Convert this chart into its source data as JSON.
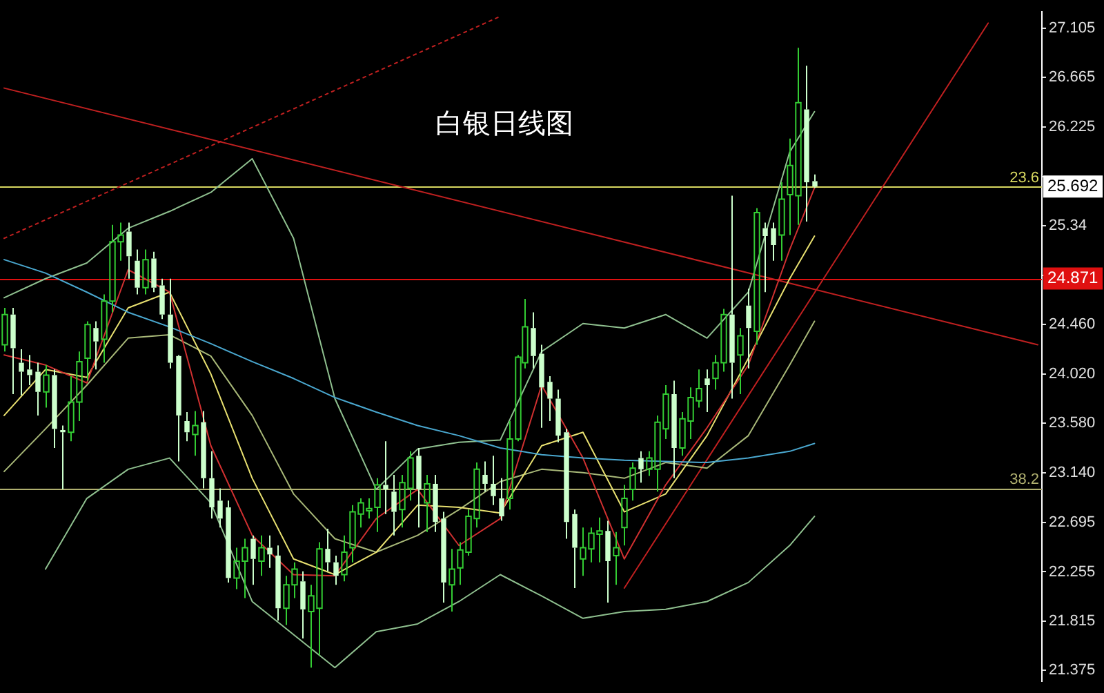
{
  "chart_data": {
    "type": "candlestick",
    "title": "白银日线图",
    "categories": [
      null,
      null,
      null,
      null,
      null,
      null,
      null,
      null,
      null,
      null,
      null,
      null,
      null,
      null,
      null,
      null,
      null,
      null,
      null,
      null,
      null,
      null,
      null,
      null,
      null,
      null,
      null,
      null,
      null,
      null,
      null,
      null,
      null,
      null,
      null,
      null,
      null,
      null,
      null,
      null,
      null,
      null,
      null,
      null,
      null,
      null,
      null,
      null,
      null,
      null,
      null,
      null,
      null,
      null,
      null,
      null,
      null,
      null,
      null,
      null,
      null,
      null,
      null,
      null,
      null,
      null,
      null,
      null,
      null,
      null,
      null,
      null,
      null,
      null,
      null,
      null,
      null,
      null,
      null,
      null,
      null,
      null,
      null,
      null,
      null,
      null,
      null,
      null,
      null,
      null,
      null,
      null,
      null,
      null,
      null,
      null,
      null,
      null,
      null,
      null,
      null,
      null,
      null,
      null,
      null,
      null,
      null,
      null,
      null,
      null,
      null,
      null,
      null,
      null,
      null,
      null,
      null,
      null,
      null,
      null,
      null,
      null,
      null,
      null,
      null,
      null
    ],
    "ohlc": [
      [
        24.28,
        24.61,
        24.22,
        24.55
      ],
      [
        24.55,
        24.61,
        23.84,
        24.25
      ],
      [
        24.12,
        24.24,
        23.83,
        24.04
      ],
      [
        24.06,
        24.19,
        23.92,
        24.01
      ],
      [
        24.04,
        24.12,
        23.65,
        23.86
      ],
      [
        23.86,
        24.1,
        23.72,
        24.01
      ],
      [
        24.01,
        24.06,
        23.36,
        23.53
      ],
      [
        23.52,
        23.56,
        22.99,
        23.5
      ],
      [
        23.5,
        24.0,
        23.42,
        23.77
      ],
      [
        23.77,
        24.22,
        23.6,
        24.13
      ],
      [
        24.16,
        24.49,
        23.96,
        24.46
      ],
      [
        24.43,
        24.49,
        24.06,
        24.31
      ],
      [
        24.33,
        24.73,
        24.12,
        24.67
      ],
      [
        24.67,
        25.35,
        24.57,
        25.2
      ],
      [
        25.2,
        25.37,
        25.03,
        25.26
      ],
      [
        25.29,
        25.37,
        24.87,
        25.07
      ],
      [
        25.03,
        25.13,
        24.73,
        24.79
      ],
      [
        24.79,
        25.13,
        24.73,
        25.04
      ],
      [
        25.05,
        25.11,
        24.75,
        24.79
      ],
      [
        24.81,
        24.87,
        24.51,
        24.55
      ],
      [
        24.55,
        24.87,
        24.07,
        24.12
      ],
      [
        24.18,
        24.19,
        23.24,
        23.65
      ],
      [
        23.6,
        23.68,
        23.42,
        23.5
      ],
      [
        23.48,
        23.69,
        23.29,
        23.56
      ],
      [
        23.59,
        23.69,
        23.0,
        23.09
      ],
      [
        23.09,
        23.33,
        22.73,
        22.83
      ],
      [
        22.89,
        23.0,
        22.65,
        22.73
      ],
      [
        22.83,
        22.89,
        22.16,
        22.2
      ],
      [
        22.2,
        22.47,
        22.1,
        22.35
      ],
      [
        22.35,
        22.55,
        22.02,
        22.47
      ],
      [
        22.55,
        22.58,
        22.14,
        22.37
      ],
      [
        22.35,
        22.58,
        22.22,
        22.47
      ],
      [
        22.47,
        22.58,
        22.29,
        22.41
      ],
      [
        22.4,
        22.49,
        21.82,
        21.93
      ],
      [
        21.93,
        22.22,
        21.78,
        22.14
      ],
      [
        22.14,
        22.34,
        22.02,
        22.28
      ],
      [
        22.17,
        22.26,
        21.66,
        21.92
      ],
      [
        21.9,
        22.14,
        21.4,
        22.04
      ],
      [
        21.93,
        22.52,
        21.51,
        22.46
      ],
      [
        22.46,
        22.64,
        22.26,
        22.34
      ],
      [
        22.34,
        22.4,
        22.14,
        22.22
      ],
      [
        22.23,
        22.58,
        22.17,
        22.43
      ],
      [
        22.47,
        22.85,
        22.34,
        22.79
      ],
      [
        22.77,
        22.91,
        22.65,
        22.87
      ],
      [
        22.8,
        22.91,
        22.73,
        22.82
      ],
      [
        22.83,
        23.09,
        22.61,
        23.03
      ],
      [
        23.03,
        23.42,
        22.77,
        22.99
      ],
      [
        22.97,
        23.12,
        22.58,
        22.79
      ],
      [
        22.81,
        23.12,
        22.65,
        23.05
      ],
      [
        23.0,
        23.33,
        22.89,
        23.27
      ],
      [
        23.29,
        23.36,
        22.65,
        22.99
      ],
      [
        22.87,
        23.12,
        22.61,
        23.04
      ],
      [
        23.04,
        23.12,
        22.61,
        22.7
      ],
      [
        22.73,
        22.79,
        21.98,
        22.16
      ],
      [
        22.14,
        22.46,
        21.9,
        22.28
      ],
      [
        22.29,
        22.52,
        22.14,
        22.45
      ],
      [
        22.43,
        22.81,
        22.4,
        22.75
      ],
      [
        22.73,
        23.23,
        22.65,
        23.17
      ],
      [
        23.12,
        23.24,
        22.97,
        23.04
      ],
      [
        23.04,
        23.29,
        22.85,
        22.93
      ],
      [
        22.91,
        23.09,
        22.71,
        22.75
      ],
      [
        22.91,
        23.6,
        22.81,
        23.44
      ],
      [
        23.44,
        24.19,
        23.42,
        24.17
      ],
      [
        24.12,
        24.69,
        24.07,
        24.44
      ],
      [
        24.43,
        24.57,
        24.07,
        24.18
      ],
      [
        24.2,
        24.28,
        23.54,
        23.9
      ],
      [
        23.95,
        24.0,
        23.6,
        23.8
      ],
      [
        23.8,
        23.88,
        23.41,
        23.47
      ],
      [
        23.5,
        23.53,
        22.55,
        22.7
      ],
      [
        22.77,
        22.81,
        22.11,
        22.47
      ],
      [
        22.37,
        22.65,
        22.22,
        22.47
      ],
      [
        22.46,
        22.65,
        22.34,
        22.6
      ],
      [
        22.59,
        22.74,
        22.34,
        22.62
      ],
      [
        22.62,
        22.71,
        21.98,
        22.35
      ],
      [
        22.4,
        22.61,
        22.14,
        22.47
      ],
      [
        22.65,
        23.03,
        22.49,
        22.91
      ],
      [
        22.99,
        23.23,
        22.89,
        23.18
      ],
      [
        23.27,
        23.33,
        23.05,
        23.17
      ],
      [
        23.17,
        23.33,
        23.11,
        23.27
      ],
      [
        23.17,
        23.65,
        22.97,
        23.59
      ],
      [
        23.53,
        23.92,
        23.44,
        23.84
      ],
      [
        23.84,
        23.96,
        23.09,
        23.36
      ],
      [
        23.36,
        23.68,
        23.29,
        23.62
      ],
      [
        23.6,
        23.9,
        23.44,
        23.81
      ],
      [
        23.78,
        24.06,
        23.72,
        23.89
      ],
      [
        23.98,
        24.06,
        23.68,
        23.92
      ],
      [
        23.98,
        24.19,
        23.88,
        24.12
      ],
      [
        24.12,
        24.6,
        24.04,
        24.55
      ],
      [
        24.55,
        25.61,
        23.8,
        24.12
      ],
      [
        24.19,
        24.43,
        23.84,
        24.36
      ],
      [
        24.63,
        24.78,
        24.07,
        24.43
      ],
      [
        24.4,
        25.5,
        24.28,
        25.46
      ],
      [
        25.32,
        25.37,
        24.75,
        25.25
      ],
      [
        25.32,
        25.37,
        25.03,
        25.17
      ],
      [
        25.26,
        25.73,
        25.03,
        25.58
      ],
      [
        25.62,
        26.12,
        25.26,
        25.88
      ],
      [
        25.61,
        26.93,
        25.35,
        26.44
      ],
      [
        26.38,
        26.77,
        25.38,
        25.73
      ],
      [
        25.74,
        25.8,
        25.68,
        25.692
      ],
      null,
      null,
      null,
      null,
      null,
      null,
      null,
      null,
      null,
      null,
      null,
      null,
      null,
      null,
      null,
      null,
      null,
      null,
      null,
      null,
      null,
      null,
      null,
      null,
      null,
      null,
      null
    ],
    "colors": [
      "#33cc33",
      "#ccffcc",
      "#ccffcc",
      "#ccffcc",
      "#ccffcc",
      "#33cc33",
      "#ccffcc",
      "#ccffcc",
      "#33cc33",
      "#33cc33",
      "#33cc33",
      "#ccffcc",
      "#33cc33",
      "#33cc33",
      "#33cc33",
      "#ccffcc",
      "#ccffcc",
      "#33cc33",
      "#ccffcc",
      "#ccffcc",
      "#ccffcc",
      "#ccffcc",
      "#ccffcc",
      "#33cc33",
      "#ccffcc",
      "#ccffcc",
      "#ccffcc",
      "#ccffcc",
      "#33cc33",
      "#33cc33",
      "#ccffcc",
      "#33cc33",
      "#ccffcc",
      "#ccffcc",
      "#33cc33",
      "#33cc33",
      "#ccffcc",
      "#33cc33",
      "#33cc33",
      "#ccffcc",
      "#ccffcc",
      "#33cc33",
      "#33cc33",
      "#33cc33",
      "#33cc33",
      "#33cc33",
      "#ccffcc",
      "#ccffcc",
      "#33cc33",
      "#33cc33",
      "#ccffcc",
      "#33cc33",
      "#ccffcc",
      "#ccffcc",
      "#33cc33",
      "#33cc33",
      "#33cc33",
      "#33cc33",
      "#ccffcc",
      "#ccffcc",
      "#ccffcc",
      "#33cc33",
      "#33cc33",
      "#33cc33",
      "#ccffcc",
      "#ccffcc",
      "#ccffcc",
      "#ccffcc",
      "#ccffcc",
      "#ccffcc",
      "#33cc33",
      "#33cc33",
      "#33cc33",
      "#ccffcc",
      "#33cc33",
      "#33cc33",
      "#33cc33",
      "#ccffcc",
      "#33cc33",
      "#33cc33",
      "#33cc33",
      "#ccffcc",
      "#33cc33",
      "#33cc33",
      "#33cc33",
      "#ccffcc",
      "#33cc33",
      "#33cc33",
      "#ccffcc",
      "#33cc33",
      "#ccffcc",
      "#33cc33",
      "#ccffcc",
      "#ccffcc",
      "#33cc33",
      "#33cc33",
      "#33cc33",
      "#ccffcc",
      "#ccffcc",
      null,
      null,
      null,
      null,
      null,
      null,
      null,
      null,
      null,
      null,
      null,
      null,
      null,
      null,
      null,
      null,
      null,
      null,
      null,
      null,
      null,
      null,
      null,
      null,
      null,
      null,
      null
    ],
    "series": [
      {
        "type": "line",
        "color": "#4aa8d0",
        "values": [
          25.04,
          null,
          null,
          null,
          null,
          24.92,
          null,
          null,
          null,
          null,
          24.75,
          null,
          null,
          null,
          null,
          24.57,
          null,
          null,
          null,
          null,
          24.44,
          null,
          null,
          null,
          null,
          24.29,
          null,
          null,
          null,
          null,
          24.13,
          null,
          null,
          null,
          null,
          23.98,
          null,
          null,
          null,
          null,
          23.81,
          null,
          null,
          null,
          null,
          23.68,
          null,
          null,
          null,
          null,
          23.56,
          null,
          null,
          null,
          null,
          23.47,
          null,
          null,
          null,
          null,
          23.36,
          null,
          null,
          null,
          null,
          23.3,
          null,
          null,
          null,
          null,
          23.27,
          null,
          null,
          null,
          null,
          23.25,
          null,
          null,
          null,
          null,
          23.24,
          null,
          null,
          null,
          null,
          23.23,
          null,
          null,
          null,
          null,
          23.27,
          null,
          null,
          null,
          null,
          23.33,
          null,
          null,
          23.4,
          null,
          null,
          null,
          null,
          null,
          null,
          null,
          null,
          null,
          null,
          null,
          null,
          null,
          null,
          null,
          null,
          null,
          null,
          null,
          null,
          null,
          null,
          null,
          null,
          null,
          null,
          null
        ]
      },
      {
        "type": "line",
        "color": "#d03030",
        "values": [
          24.19,
          null,
          null,
          null,
          null,
          24.1,
          null,
          null,
          null,
          null,
          23.94,
          null,
          null,
          null,
          null,
          24.95,
          null,
          null,
          null,
          null,
          24.75,
          null,
          null,
          null,
          null,
          23.38,
          null,
          null,
          null,
          null,
          22.58,
          null,
          null,
          null,
          null,
          22.23,
          null,
          null,
          null,
          null,
          22.22,
          null,
          null,
          null,
          null,
          22.73,
          null,
          null,
          null,
          null,
          22.99,
          null,
          null,
          null,
          null,
          22.49,
          null,
          null,
          null,
          null,
          22.73,
          null,
          null,
          null,
          null,
          23.92,
          null,
          null,
          null,
          null,
          23.27,
          null,
          null,
          null,
          null,
          22.37,
          null,
          null,
          null,
          null,
          23.03,
          null,
          null,
          null,
          null,
          23.54,
          null,
          null,
          null,
          null,
          24.1,
          null,
          null,
          null,
          null,
          25.13,
          null,
          null,
          25.68,
          null,
          null,
          null,
          null,
          null,
          null,
          null,
          null,
          null,
          null,
          null,
          null,
          null,
          null,
          null,
          null,
          null,
          null,
          null,
          null,
          null,
          null,
          null,
          null,
          null,
          null,
          null
        ]
      },
      {
        "type": "line",
        "color": "#e8e070",
        "values": [
          23.65,
          null,
          null,
          null,
          null,
          24.06,
          null,
          null,
          null,
          null,
          23.99,
          null,
          null,
          null,
          null,
          24.61,
          null,
          null,
          null,
          null,
          24.75,
          null,
          null,
          null,
          null,
          24.02,
          null,
          null,
          null,
          null,
          23.09,
          null,
          null,
          null,
          null,
          22.37,
          null,
          null,
          null,
          null,
          22.23,
          null,
          null,
          null,
          null,
          22.43,
          null,
          null,
          null,
          null,
          22.85,
          null,
          null,
          null,
          null,
          22.83,
          null,
          null,
          null,
          null,
          22.78,
          null,
          null,
          null,
          null,
          23.38,
          null,
          null,
          null,
          null,
          23.5,
          null,
          null,
          null,
          null,
          22.79,
          null,
          null,
          null,
          null,
          22.95,
          null,
          null,
          null,
          null,
          23.47,
          null,
          null,
          null,
          null,
          24.16,
          null,
          null,
          null,
          null,
          24.87,
          null,
          null,
          25.25,
          null,
          null,
          null,
          null,
          null,
          null,
          null,
          null,
          null,
          null,
          null,
          null,
          null,
          null,
          null,
          null,
          null,
          null,
          null,
          null,
          null,
          null,
          null,
          null,
          null,
          null,
          null
        ]
      },
      {
        "type": "line",
        "color": "#8fc08f",
        "values": [
          24.7,
          null,
          null,
          null,
          null,
          24.87,
          null,
          null,
          null,
          null,
          25.01,
          null,
          null,
          null,
          null,
          25.32,
          null,
          null,
          null,
          null,
          25.47,
          null,
          null,
          null,
          null,
          25.64,
          null,
          null,
          null,
          null,
          25.94,
          null,
          null,
          null,
          null,
          25.23,
          null,
          null,
          null,
          null,
          23.8,
          null,
          null,
          null,
          null,
          22.99,
          null,
          null,
          null,
          null,
          23.35,
          null,
          null,
          null,
          null,
          23.41,
          null,
          null,
          null,
          null,
          23.43,
          null,
          null,
          null,
          null,
          24.22,
          null,
          null,
          null,
          null,
          24.47,
          null,
          null,
          null,
          null,
          24.43,
          null,
          null,
          null,
          null,
          24.55,
          null,
          null,
          null,
          null,
          24.34,
          null,
          null,
          null,
          null,
          24.75,
          null,
          null,
          null,
          null,
          26.0,
          null,
          null,
          26.36,
          null,
          null,
          null,
          null,
          null,
          null,
          null,
          null,
          null,
          null,
          null,
          null,
          null,
          null,
          null,
          null,
          null,
          null,
          null,
          null,
          null,
          null,
          null,
          null,
          null,
          null,
          null
        ]
      },
      {
        "type": "line",
        "color": "#a8b878",
        "values": [
          23.15,
          null,
          null,
          null,
          null,
          23.53,
          null,
          null,
          null,
          null,
          23.92,
          null,
          null,
          null,
          null,
          24.34,
          null,
          null,
          null,
          null,
          24.37,
          null,
          null,
          null,
          null,
          24.18,
          null,
          null,
          null,
          null,
          23.65,
          null,
          null,
          null,
          null,
          22.95,
          null,
          null,
          null,
          null,
          22.55,
          null,
          null,
          null,
          null,
          22.43,
          null,
          null,
          null,
          null,
          22.58,
          null,
          null,
          null,
          null,
          22.81,
          null,
          null,
          null,
          null,
          23.06,
          null,
          null,
          null,
          null,
          23.17,
          null,
          null,
          null,
          null,
          23.14,
          null,
          null,
          null,
          null,
          23.09,
          null,
          null,
          null,
          null,
          23.23,
          null,
          null,
          null,
          null,
          23.18,
          null,
          null,
          null,
          null,
          23.47,
          null,
          null,
          null,
          null,
          24.1,
          null,
          null,
          24.49,
          null,
          null,
          null,
          null,
          null,
          null,
          null,
          null,
          null,
          null,
          null,
          null,
          null,
          null,
          null,
          null,
          null,
          null,
          null,
          null,
          null,
          null,
          null,
          null,
          null,
          null,
          null
        ]
      },
      {
        "type": "line",
        "color": "#8fc08f",
        "values": [
          null,
          null,
          null,
          null,
          null,
          22.28,
          null,
          null,
          null,
          null,
          22.91,
          null,
          null,
          null,
          null,
          23.17,
          null,
          null,
          null,
          null,
          23.27,
          null,
          null,
          null,
          null,
          22.87,
          null,
          null,
          null,
          null,
          21.99,
          null,
          null,
          null,
          null,
          null,
          null,
          null,
          null,
          null,
          21.4,
          null,
          null,
          null,
          null,
          21.72,
          null,
          null,
          null,
          null,
          21.79,
          null,
          null,
          null,
          null,
          21.99,
          null,
          null,
          null,
          null,
          22.23,
          null,
          null,
          null,
          null,
          22.04,
          null,
          null,
          null,
          null,
          21.84,
          null,
          null,
          null,
          null,
          21.9,
          null,
          null,
          null,
          null,
          21.92,
          null,
          null,
          null,
          null,
          21.99,
          null,
          null,
          null,
          null,
          22.16,
          null,
          null,
          null,
          null,
          22.49,
          null,
          null,
          22.75,
          null,
          null,
          null,
          null,
          null,
          null,
          null,
          null,
          null,
          null,
          null,
          null,
          null,
          null,
          null,
          null,
          null,
          null,
          null,
          null,
          null,
          null,
          null,
          null,
          null,
          null,
          null
        ]
      },
      {
        "type": "line",
        "color": "#c02020",
        "values": [
          26.57,
          null,
          null,
          null,
          null,
          null,
          null,
          null,
          null,
          null,
          null,
          null,
          null,
          null,
          null,
          null,
          null,
          null,
          null,
          null,
          null,
          null,
          null,
          null,
          null,
          null,
          null,
          null,
          null,
          null,
          null,
          null,
          null,
          null,
          null,
          null,
          null,
          null,
          null,
          null,
          null,
          null,
          null,
          null,
          null,
          null,
          null,
          null,
          null,
          null,
          null,
          null,
          null,
          null,
          null,
          null,
          null,
          null,
          null,
          null,
          null,
          null,
          null,
          null,
          null,
          null,
          null,
          null,
          null,
          null,
          null,
          null,
          null,
          null,
          null,
          null,
          null,
          null,
          null,
          null,
          null,
          null,
          null,
          null,
          null,
          null,
          null,
          null,
          null,
          null,
          null,
          null,
          null,
          null,
          null,
          null,
          null,
          null,
          null,
          null,
          null,
          null,
          null,
          null,
          null,
          null,
          null,
          null,
          null,
          null,
          null,
          null,
          null,
          null,
          null,
          null,
          null,
          null,
          null,
          null,
          null,
          null,
          null,
          null,
          null,
          24.28
        ]
      },
      {
        "type": "line",
        "color": "#c02020",
        "values": [
          null,
          null,
          null,
          null,
          null,
          null,
          null,
          null,
          null,
          null,
          null,
          null,
          null,
          null,
          null,
          null,
          null,
          null,
          null,
          null,
          null,
          null,
          null,
          null,
          null,
          null,
          null,
          null,
          null,
          null,
          null,
          null,
          null,
          null,
          null,
          null,
          null,
          null,
          null,
          null,
          null,
          null,
          null,
          null,
          null,
          null,
          null,
          null,
          null,
          null,
          null,
          null,
          null,
          null,
          null,
          null,
          null,
          null,
          null,
          null,
          null,
          null,
          null,
          null,
          null,
          null,
          null,
          null,
          null,
          null,
          null,
          null,
          null,
          null,
          null,
          22.11,
          null,
          null,
          null,
          null,
          null,
          null,
          null,
          null,
          null,
          null,
          null,
          null,
          null,
          null,
          null,
          null,
          null,
          null,
          null,
          null,
          null,
          null,
          null,
          null,
          null,
          null,
          null,
          null,
          null,
          null,
          null,
          null,
          null,
          null,
          null,
          null,
          null,
          null,
          null,
          null,
          null,
          null,
          null,
          27.15,
          null,
          null,
          null,
          null,
          null,
          null
        ]
      },
      {
        "type": "line",
        "color": "#c02020",
        "line_style": "dotted",
        "values": [
          25.23,
          null,
          null,
          null,
          null,
          null,
          null,
          null,
          null,
          null,
          null,
          null,
          null,
          null,
          null,
          null,
          null,
          null,
          null,
          null,
          null,
          null,
          null,
          null,
          null,
          null,
          null,
          null,
          null,
          null,
          null,
          null,
          null,
          null,
          null,
          null,
          null,
          null,
          null,
          null,
          null,
          null,
          null,
          null,
          null,
          null,
          null,
          null,
          null,
          null,
          null,
          null,
          null,
          null,
          null,
          null,
          null,
          null,
          null,
          null,
          27.21,
          null,
          null,
          null,
          null,
          null,
          null,
          null,
          null,
          null,
          null,
          null,
          null,
          null,
          null,
          null,
          null,
          null,
          null,
          null,
          null,
          null,
          null,
          null,
          null,
          null,
          null,
          null,
          null,
          null,
          null,
          null,
          null,
          null,
          null,
          null,
          null,
          null,
          null,
          null,
          null,
          null,
          null,
          null,
          null,
          null,
          null,
          null,
          null,
          null,
          null,
          null,
          null,
          null,
          null,
          null,
          null,
          null,
          null,
          null,
          null,
          null,
          null,
          null,
          null,
          null
        ]
      }
    ],
    "ylim": [
      21.28,
      27.25
    ],
    "yticks": [
      27.105,
      26.665,
      26.225,
      {
        "value": 25.78,
        "label": null
      },
      25.34,
      {
        "value": 24.9,
        "label": null
      },
      {
        "value": 24.46,
        "label": "24.460"
      },
      {
        "value": 24.02,
        "label": "24.020"
      },
      {
        "value": 23.58,
        "label": "23.580"
      },
      {
        "value": 23.14,
        "label": "23.140"
      },
      22.695,
      22.255,
      21.815,
      21.375
    ],
    "tick_labels": "y",
    "ref_lines": [
      {
        "axis": "y",
        "value": 25.69,
        "color": "#d8d860"
      },
      {
        "axis": "y",
        "value": 24.871,
        "label": "24.871",
        "color": "#e01010"
      },
      {
        "axis": "y",
        "value": 23.0,
        "color": "#b0b070"
      }
    ],
    "annotations": [
      {
        "text": "23.6",
        "y": 25.69
      },
      {
        "text": "38.2",
        "y": 23.0
      },
      {
        "text": "25.692",
        "y": 25.692
      }
    ]
  }
}
